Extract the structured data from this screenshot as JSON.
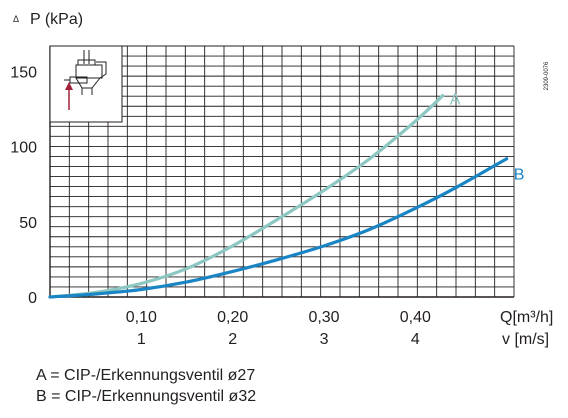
{
  "chart_data": {
    "type": "line",
    "y_axis": {
      "symbol": "Δ",
      "label": "P (kPa)",
      "range": [
        0,
        167
      ],
      "ticks": [
        0,
        50,
        100,
        150
      ]
    },
    "x_axis": {
      "label": "Q[m³/h]",
      "range": [
        0,
        0.508
      ],
      "ticks": [
        0.1,
        0.2,
        0.3,
        0.4
      ],
      "tick_labels": [
        "0,10",
        "0,20",
        "0,30",
        "0,40"
      ]
    },
    "x_axis_secondary": {
      "label": "v [m/s]",
      "tick_labels": [
        "1",
        "2",
        "3",
        "4"
      ]
    },
    "grid": true,
    "series": [
      {
        "name": "A",
        "color": "#8cc7c2",
        "x": [
          0.0,
          0.05,
          0.1,
          0.15,
          0.2,
          0.25,
          0.3,
          0.35,
          0.4,
          0.43
        ],
        "y": [
          0,
          3,
          9,
          19,
          34,
          52,
          71,
          92,
          117,
          134
        ]
      },
      {
        "name": "B",
        "color": "#1a85c5",
        "x": [
          0.0,
          0.05,
          0.1,
          0.15,
          0.2,
          0.25,
          0.3,
          0.35,
          0.4,
          0.445,
          0.5
        ],
        "y": [
          0,
          2,
          5,
          10,
          17,
          25,
          34,
          45,
          59,
          73,
          92
        ]
      }
    ]
  },
  "inset": {
    "code": "2309-0076"
  },
  "legend": [
    "A = CIP-/Erkennungsventil ø27",
    "B = CIP-/Erkennungsventil ø32"
  ]
}
